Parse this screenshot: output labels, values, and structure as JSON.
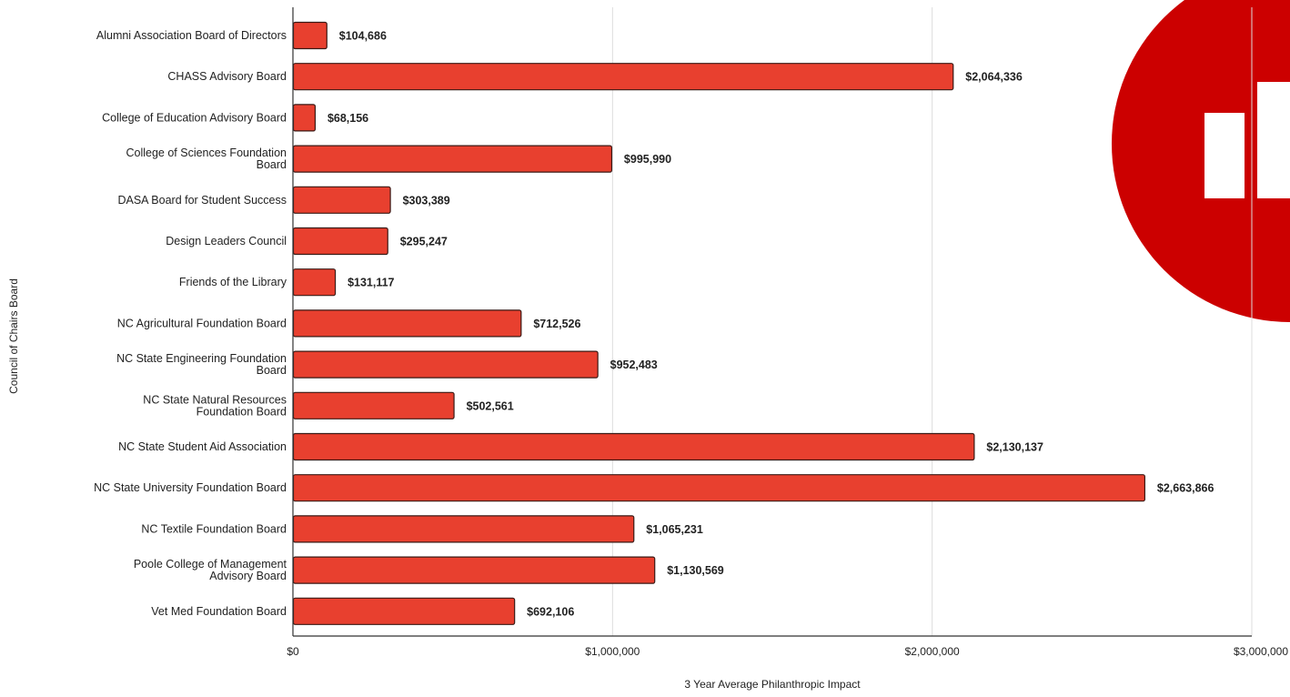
{
  "chart_data": {
    "type": "bar",
    "orientation": "horizontal",
    "title": "",
    "xlabel": "3 Year Average Philanthropic Impact",
    "ylabel": "Council of Chairs Board",
    "xlim": [
      0,
      3000000
    ],
    "grid": true,
    "legend": "none",
    "x_ticks": [
      {
        "value": 0,
        "label": "$0"
      },
      {
        "value": 1000000,
        "label": "$1,000,000"
      },
      {
        "value": 2000000,
        "label": "$2,000,000"
      },
      {
        "value": 3000000,
        "label": "$3,000,000"
      }
    ],
    "categories": [
      [
        "Alumni Association Board of Directors"
      ],
      [
        "CHASS Advisory Board"
      ],
      [
        "College of Education Advisory Board"
      ],
      [
        "College of Sciences Foundation",
        "Board"
      ],
      [
        "DASA Board for Student Success"
      ],
      [
        "Design Leaders Council"
      ],
      [
        "Friends of the Library"
      ],
      [
        "NC Agricultural Foundation Board"
      ],
      [
        "NC State Engineering Foundation",
        "Board"
      ],
      [
        "NC State Natural Resources",
        "Foundation Board"
      ],
      [
        "NC State Student Aid Association"
      ],
      [
        "NC State University Foundation Board"
      ],
      [
        "NC Textile Foundation Board"
      ],
      [
        "Poole College of Management",
        "Advisory Board"
      ],
      [
        "Vet Med Foundation Board"
      ]
    ],
    "values": [
      104686,
      2064336,
      68156,
      995990,
      303389,
      295247,
      131117,
      712526,
      952483,
      502561,
      2130137,
      2663866,
      1065231,
      1130569,
      692106
    ],
    "data_labels": [
      "$104,686",
      "$2,064,336",
      "$68,156",
      "$995,990",
      "$303,389",
      "$295,247",
      "$131,117",
      "$712,526",
      "$952,483",
      "$502,561",
      "$2,130,137",
      "$2,663,866",
      "$1,065,231",
      "$1,130,569",
      "$692,106"
    ],
    "colors": {
      "bar_fill": "#e8402f",
      "bar_stroke": "#3a1a16",
      "grid": "#dddddd",
      "axis": "#333333",
      "text": "#222222",
      "logo": "#cc0000"
    }
  }
}
